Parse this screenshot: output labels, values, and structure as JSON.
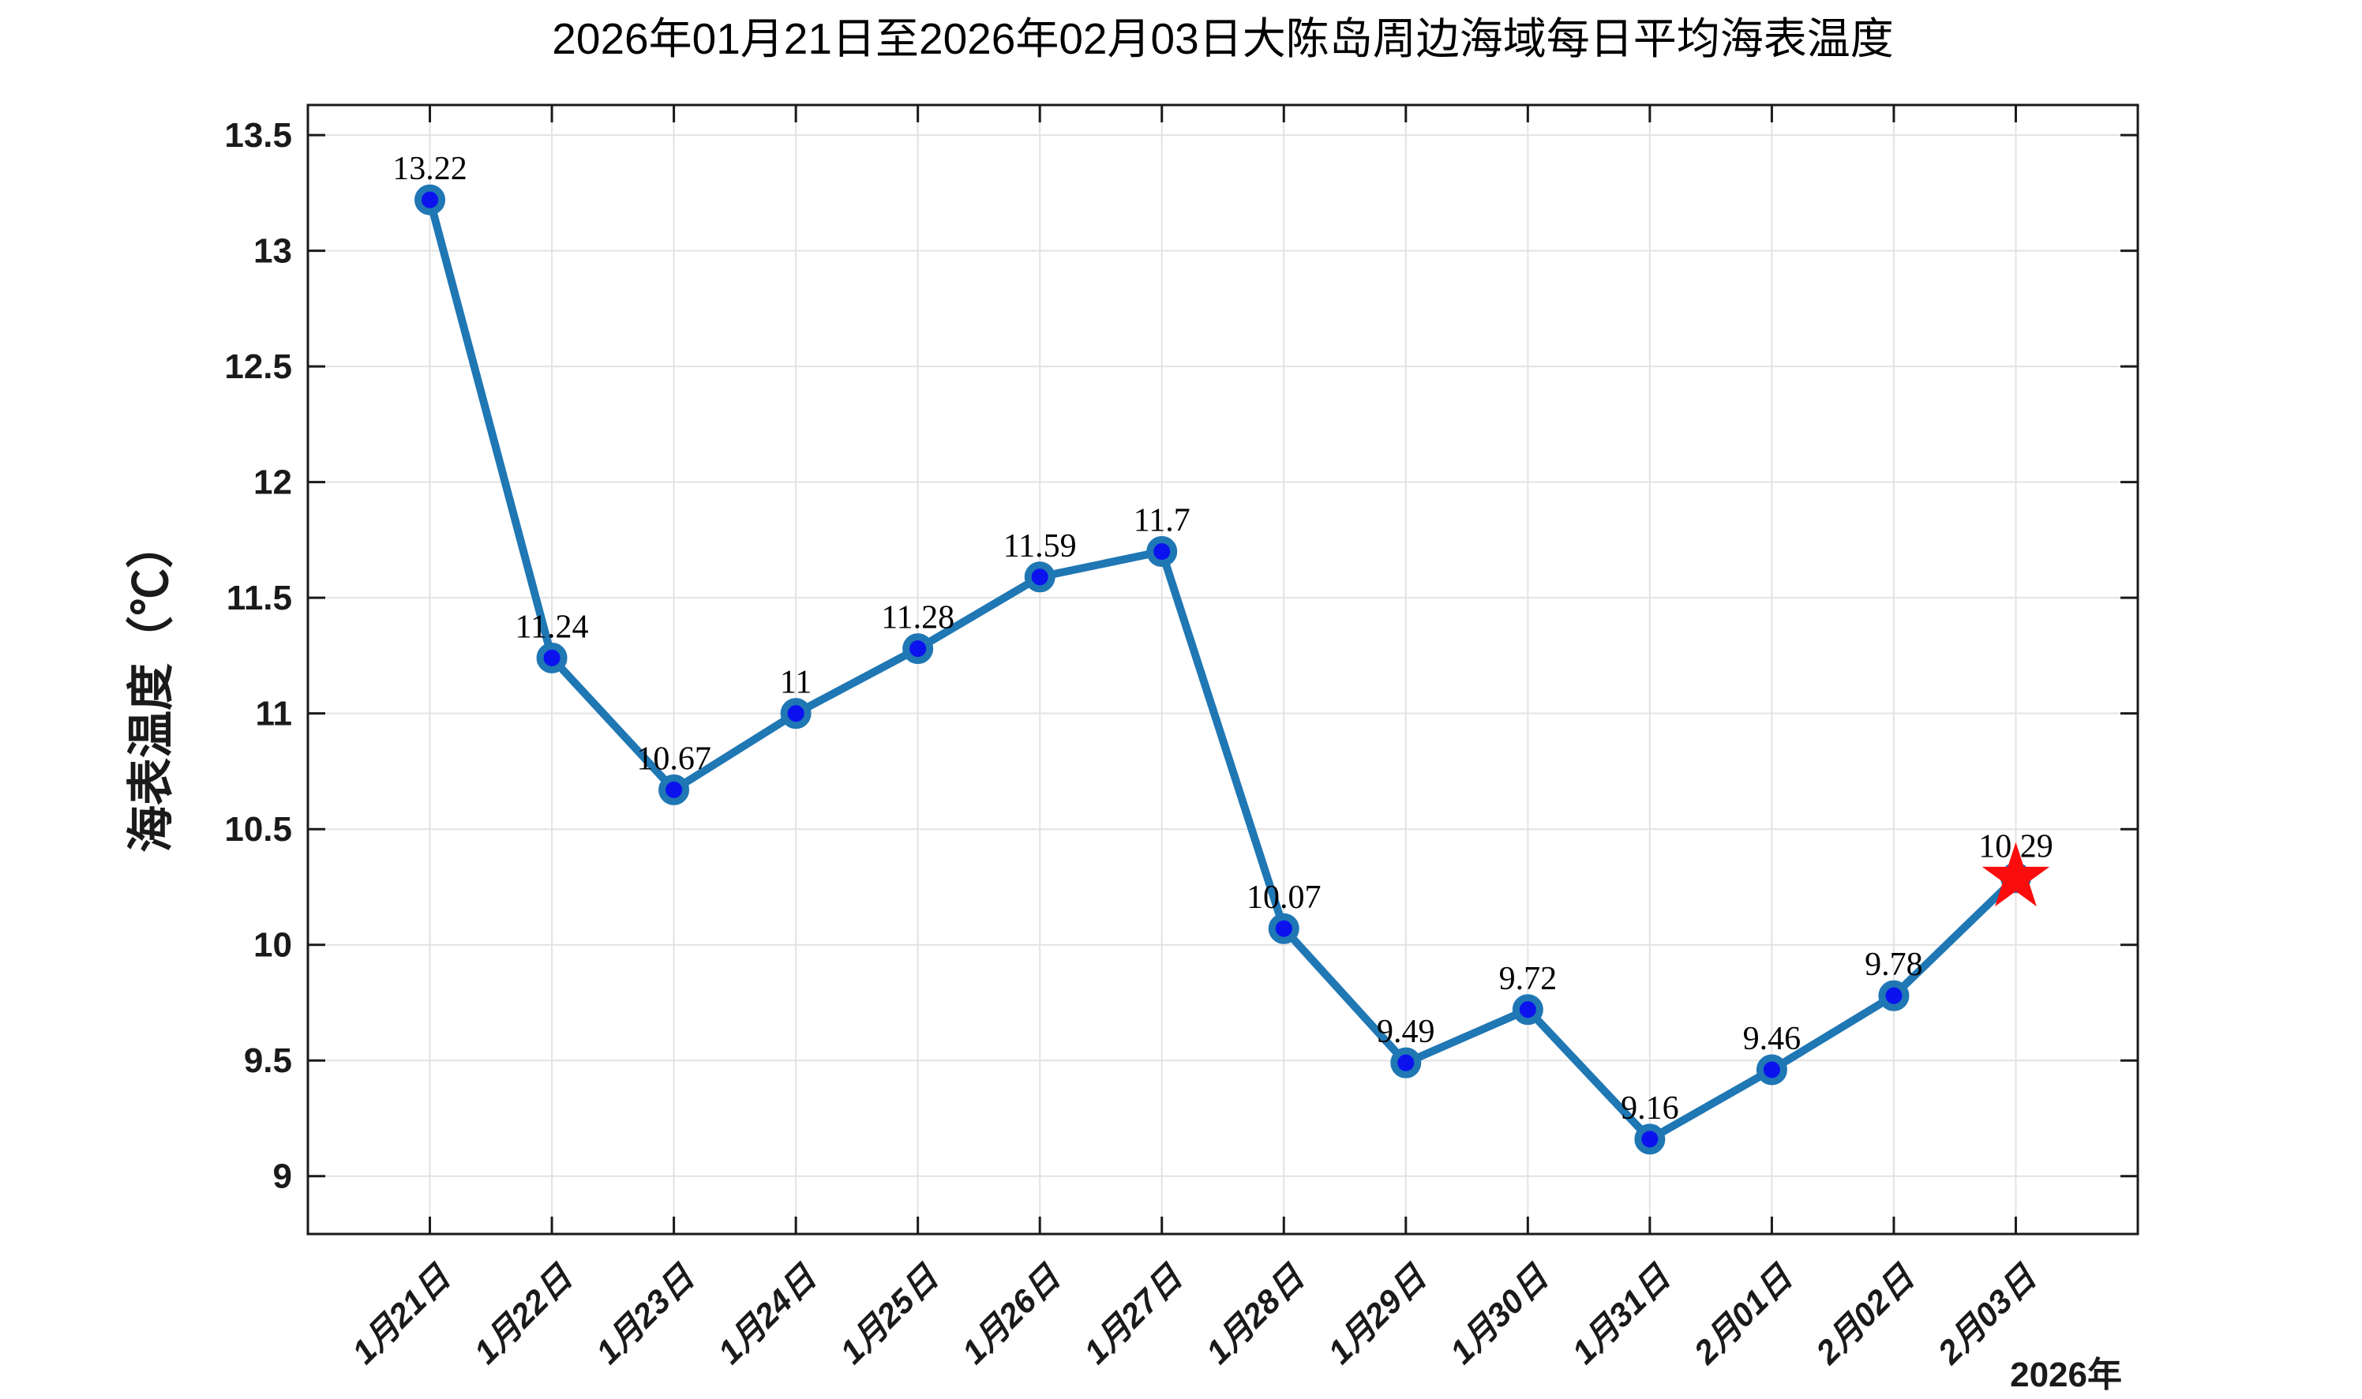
{
  "figure": {
    "title": "2026年01月21日至2026年02月03日大陈岛周边海域每日平均海表温度",
    "y_axis_label": "海表温度（℃）",
    "year_label": "2026年"
  },
  "chart_data": {
    "type": "line",
    "title": "2026年01月21日至2026年02月03日大陈岛周边海域每日平均海表温度",
    "ylabel": "海表温度（℃）",
    "xlabel": "",
    "year_annotation": "2026年",
    "categories": [
      "1月21日",
      "1月22日",
      "1月23日",
      "1月24日",
      "1月25日",
      "1月26日",
      "1月27日",
      "1月28日",
      "1月29日",
      "1月30日",
      "1月31日",
      "2月01日",
      "2月02日",
      "2月03日"
    ],
    "values": [
      13.22,
      11.24,
      10.67,
      11,
      11.28,
      11.59,
      11.7,
      10.07,
      9.49,
      9.72,
      9.16,
      9.46,
      9.78,
      10.29
    ],
    "point_labels": [
      "13.22",
      "11.24",
      "10.67",
      "11",
      "11.28",
      "11.59",
      "11.7",
      "10.07",
      "9.49",
      "9.72",
      "9.16",
      "9.46",
      "9.78",
      "10.29"
    ],
    "yticks": [
      9,
      9.5,
      10,
      10.5,
      11,
      11.5,
      12,
      12.5,
      13,
      13.5
    ],
    "ytick_labels": [
      "9",
      "9.5",
      "10",
      "10.5",
      "11",
      "11.5",
      "12",
      "12.5",
      "13",
      "13.5"
    ],
    "ylim": [
      8.75,
      13.63
    ],
    "grid": true,
    "legend_position": "none",
    "line_color": "#1f77b4",
    "marker_face_color": "#0b12ee",
    "marker_edge_color": "#1f77b4",
    "last_point_marker": "red-star",
    "star_color": "#fb0d0d",
    "grid_color": "#e2e2e2",
    "axis_color": "#1a1a1a"
  }
}
